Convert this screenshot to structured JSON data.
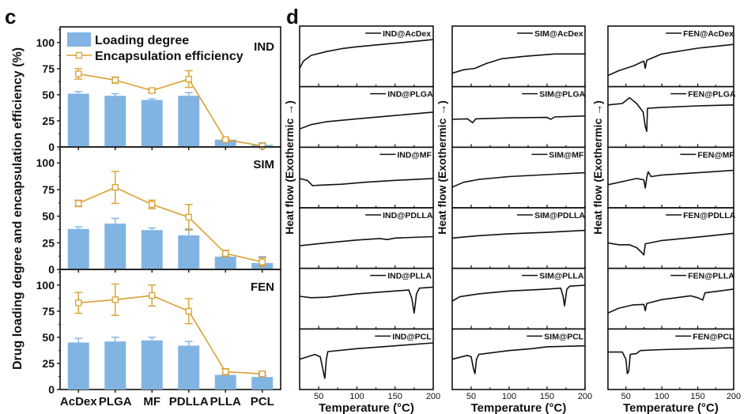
{
  "figure": {
    "panel_c_letter": "c",
    "panel_d_letter": "d"
  },
  "chart_data": [
    {
      "type": "bar",
      "panel": "c",
      "ylabel": "Drug loading degree and encapsulation efficiency (%)",
      "xlabel": "",
      "categories": [
        "AcDex",
        "PLGA",
        "MF",
        "PDLLA",
        "PLLA",
        "PCL"
      ],
      "ylim": [
        0,
        115
      ],
      "yticks": [
        "0",
        "25",
        "50",
        "75",
        "100"
      ],
      "legend": {
        "placement": "top-left",
        "entries": [
          "Loading degree",
          "Encapsulation efficiency"
        ]
      },
      "colors": {
        "bar": "#82b4e3",
        "line": "#d9a131",
        "axis": "#111111"
      },
      "subplots": [
        {
          "name": "IND",
          "series": [
            {
              "name": "Loading degree",
              "kind": "bar",
              "values": [
                51,
                49,
                45,
                49,
                7,
                2
              ],
              "errors": [
                2,
                2,
                1,
                3,
                1,
                2
              ]
            },
            {
              "name": "Encapsulation efficiency",
              "kind": "line",
              "values": [
                70,
                64,
                54,
                65,
                7,
                1
              ],
              "errors": [
                5,
                3,
                2,
                8,
                1,
                1
              ]
            }
          ]
        },
        {
          "name": "SIM",
          "series": [
            {
              "name": "Loading degree",
              "kind": "bar",
              "values": [
                38,
                43,
                37,
                32,
                12,
                6
              ],
              "errors": [
                2,
                5,
                2,
                6,
                2,
                6
              ]
            },
            {
              "name": "Encapsulation efficiency",
              "kind": "line",
              "values": [
                62,
                77,
                61,
                49,
                15,
                7
              ],
              "errors": [
                3,
                15,
                4,
                12,
                3,
                4
              ]
            }
          ]
        },
        {
          "name": "FEN",
          "series": [
            {
              "name": "Loading degree",
              "kind": "bar",
              "values": [
                45,
                46,
                47,
                42,
                14,
                12
              ],
              "errors": [
                4,
                4,
                3,
                4,
                2,
                2
              ]
            },
            {
              "name": "Encapsulation efficiency",
              "kind": "line",
              "values": [
                83,
                86,
                90,
                75,
                17,
                15
              ],
              "errors": [
                10,
                15,
                10,
                12,
                3,
                2
              ]
            }
          ]
        }
      ]
    },
    {
      "type": "line",
      "panel": "d",
      "xlabel": "Temperature (°C)",
      "ylabel": "Heat flow (Exothermic →)",
      "xlim": [
        25,
        200
      ],
      "xticks": [
        "50",
        "100",
        "150",
        "200"
      ],
      "legend": {
        "placement": "top-right"
      },
      "columns": [
        {
          "drug": "IND",
          "traces": [
            {
              "name": "IND@AcDex",
              "points": [
                [
                  25,
                  0.25
                ],
                [
                  30,
                  0.4
                ],
                [
                  40,
                  0.52
                ],
                [
                  60,
                  0.6
                ],
                [
                  80,
                  0.66
                ],
                [
                  100,
                  0.7
                ],
                [
                  140,
                  0.76
                ],
                [
                  200,
                  0.85
                ]
              ]
            },
            {
              "name": "IND@PLGA",
              "points": [
                [
                  25,
                  0.25
                ],
                [
                  40,
                  0.34
                ],
                [
                  60,
                  0.4
                ],
                [
                  100,
                  0.46
                ],
                [
                  150,
                  0.53
                ],
                [
                  200,
                  0.6
                ]
              ]
            },
            {
              "name": "IND@MF",
              "points": [
                [
                  25,
                  0.48
                ],
                [
                  35,
                  0.44
                ],
                [
                  42,
                  0.33
                ],
                [
                  50,
                  0.34
                ],
                [
                  80,
                  0.36
                ],
                [
                  110,
                  0.4
                ],
                [
                  150,
                  0.44
                ],
                [
                  200,
                  0.48
                ]
              ]
            },
            {
              "name": "IND@PDLLA",
              "points": [
                [
                  25,
                  0.34
                ],
                [
                  60,
                  0.4
                ],
                [
                  100,
                  0.46
                ],
                [
                  130,
                  0.49
                ],
                [
                  140,
                  0.47
                ],
                [
                  150,
                  0.5
                ],
                [
                  200,
                  0.53
                ]
              ]
            },
            {
              "name": "IND@PLLA",
              "points": [
                [
                  25,
                  0.55
                ],
                [
                  40,
                  0.52
                ],
                [
                  60,
                  0.53
                ],
                [
                  100,
                  0.6
                ],
                [
                  150,
                  0.66
                ],
                [
                  168,
                  0.68
                ],
                [
                  172,
                  0.5
                ],
                [
                  175,
                  0.2
                ],
                [
                  178,
                  0.6
                ],
                [
                  182,
                  0.72
                ],
                [
                  200,
                  0.74
                ]
              ]
            },
            {
              "name": "IND@PCL",
              "points": [
                [
                  25,
                  0.5
                ],
                [
                  45,
                  0.6
                ],
                [
                  52,
                  0.55
                ],
                [
                  56,
                  0.25
                ],
                [
                  58,
                  0.1
                ],
                [
                  60,
                  0.5
                ],
                [
                  62,
                  0.66
                ],
                [
                  100,
                  0.72
                ],
                [
                  150,
                  0.78
                ],
                [
                  200,
                  0.84
                ]
              ]
            }
          ]
        },
        {
          "drug": "SIM",
          "traces": [
            {
              "name": "SIM@AcDex",
              "points": [
                [
                  25,
                  0.15
                ],
                [
                  40,
                  0.22
                ],
                [
                  55,
                  0.25
                ],
                [
                  70,
                  0.35
                ],
                [
                  90,
                  0.45
                ],
                [
                  120,
                  0.5
                ],
                [
                  160,
                  0.55
                ],
                [
                  200,
                  0.55
                ]
              ]
            },
            {
              "name": "SIM@PLGA",
              "points": [
                [
                  25,
                  0.45
                ],
                [
                  45,
                  0.46
                ],
                [
                  52,
                  0.38
                ],
                [
                  56,
                  0.46
                ],
                [
                  100,
                  0.48
                ],
                [
                  150,
                  0.49
                ],
                [
                  155,
                  0.45
                ],
                [
                  160,
                  0.5
                ],
                [
                  200,
                  0.52
                ]
              ]
            },
            {
              "name": "SIM@MF",
              "points": [
                [
                  25,
                  0.3
                ],
                [
                  40,
                  0.4
                ],
                [
                  60,
                  0.46
                ],
                [
                  100,
                  0.52
                ],
                [
                  150,
                  0.56
                ],
                [
                  200,
                  0.6
                ]
              ]
            },
            {
              "name": "SIM@PDLLA",
              "points": [
                [
                  25,
                  0.5
                ],
                [
                  60,
                  0.55
                ],
                [
                  100,
                  0.59
                ],
                [
                  150,
                  0.62
                ],
                [
                  200,
                  0.66
                ]
              ]
            },
            {
              "name": "SIM@PLLA",
              "points": [
                [
                  25,
                  0.45
                ],
                [
                  35,
                  0.54
                ],
                [
                  60,
                  0.6
                ],
                [
                  100,
                  0.66
                ],
                [
                  150,
                  0.7
                ],
                [
                  168,
                  0.72
                ],
                [
                  171,
                  0.55
                ],
                [
                  173,
                  0.35
                ],
                [
                  176,
                  0.7
                ],
                [
                  180,
                  0.76
                ],
                [
                  200,
                  0.78
                ]
              ]
            },
            {
              "name": "SIM@PCL",
              "points": [
                [
                  25,
                  0.5
                ],
                [
                  45,
                  0.58
                ],
                [
                  50,
                  0.55
                ],
                [
                  53,
                  0.3
                ],
                [
                  55,
                  0.2
                ],
                [
                  57,
                  0.5
                ],
                [
                  60,
                  0.6
                ],
                [
                  100,
                  0.68
                ],
                [
                  130,
                  0.72
                ],
                [
                  150,
                  0.76
                ],
                [
                  200,
                  0.78
                ]
              ]
            }
          ]
        },
        {
          "drug": "FEN",
          "traces": [
            {
              "name": "FEN@AcDex",
              "points": [
                [
                  25,
                  0.1
                ],
                [
                  40,
                  0.2
                ],
                [
                  60,
                  0.3
                ],
                [
                  75,
                  0.4
                ],
                [
                  77,
                  0.25
                ],
                [
                  79,
                  0.42
                ],
                [
                  100,
                  0.55
                ],
                [
                  150,
                  0.67
                ],
                [
                  200,
                  0.75
                ]
              ]
            },
            {
              "name": "FEN@PLGA",
              "points": [
                [
                  25,
                  0.75
                ],
                [
                  45,
                  0.78
                ],
                [
                  55,
                  0.9
                ],
                [
                  65,
                  0.78
                ],
                [
                  74,
                  0.6
                ],
                [
                  77,
                  0.3
                ],
                [
                  79,
                  0.2
                ],
                [
                  80,
                  0.68
                ],
                [
                  100,
                  0.7
                ],
                [
                  150,
                  0.73
                ],
                [
                  200,
                  0.75
                ]
              ]
            },
            {
              "name": "FEN@MF",
              "points": [
                [
                  25,
                  0.35
                ],
                [
                  50,
                  0.43
                ],
                [
                  65,
                  0.48
                ],
                [
                  75,
                  0.45
                ],
                [
                  77,
                  0.28
                ],
                [
                  79,
                  0.5
                ],
                [
                  81,
                  0.62
                ],
                [
                  85,
                  0.52
                ],
                [
                  100,
                  0.55
                ],
                [
                  150,
                  0.6
                ],
                [
                  200,
                  0.65
                ]
              ]
            },
            {
              "name": "FEN@PDLLA",
              "points": [
                [
                  25,
                  0.4
                ],
                [
                  40,
                  0.36
                ],
                [
                  55,
                  0.36
                ],
                [
                  65,
                  0.3
                ],
                [
                  72,
                  0.2
                ],
                [
                  75,
                  0.15
                ],
                [
                  77,
                  0.38
                ],
                [
                  100,
                  0.45
                ],
                [
                  150,
                  0.52
                ],
                [
                  200,
                  0.6
                ]
              ]
            },
            {
              "name": "FEN@PLLA",
              "points": [
                [
                  25,
                  0.2
                ],
                [
                  40,
                  0.3
                ],
                [
                  60,
                  0.37
                ],
                [
                  75,
                  0.38
                ],
                [
                  77,
                  0.25
                ],
                [
                  79,
                  0.4
                ],
                [
                  100,
                  0.48
                ],
                [
                  140,
                  0.56
                ],
                [
                  150,
                  0.52
                ],
                [
                  157,
                  0.47
                ],
                [
                  160,
                  0.62
                ],
                [
                  200,
                  0.7
                ]
              ]
            },
            {
              "name": "FEN@PCL",
              "points": [
                [
                  25,
                  0.65
                ],
                [
                  45,
                  0.65
                ],
                [
                  50,
                  0.5
                ],
                [
                  52,
                  0.2
                ],
                [
                  54,
                  0.25
                ],
                [
                  56,
                  0.6
                ],
                [
                  65,
                  0.62
                ],
                [
                  70,
                  0.68
                ],
                [
                  100,
                  0.7
                ],
                [
                  150,
                  0.72
                ],
                [
                  200,
                  0.74
                ]
              ]
            }
          ]
        }
      ]
    }
  ]
}
